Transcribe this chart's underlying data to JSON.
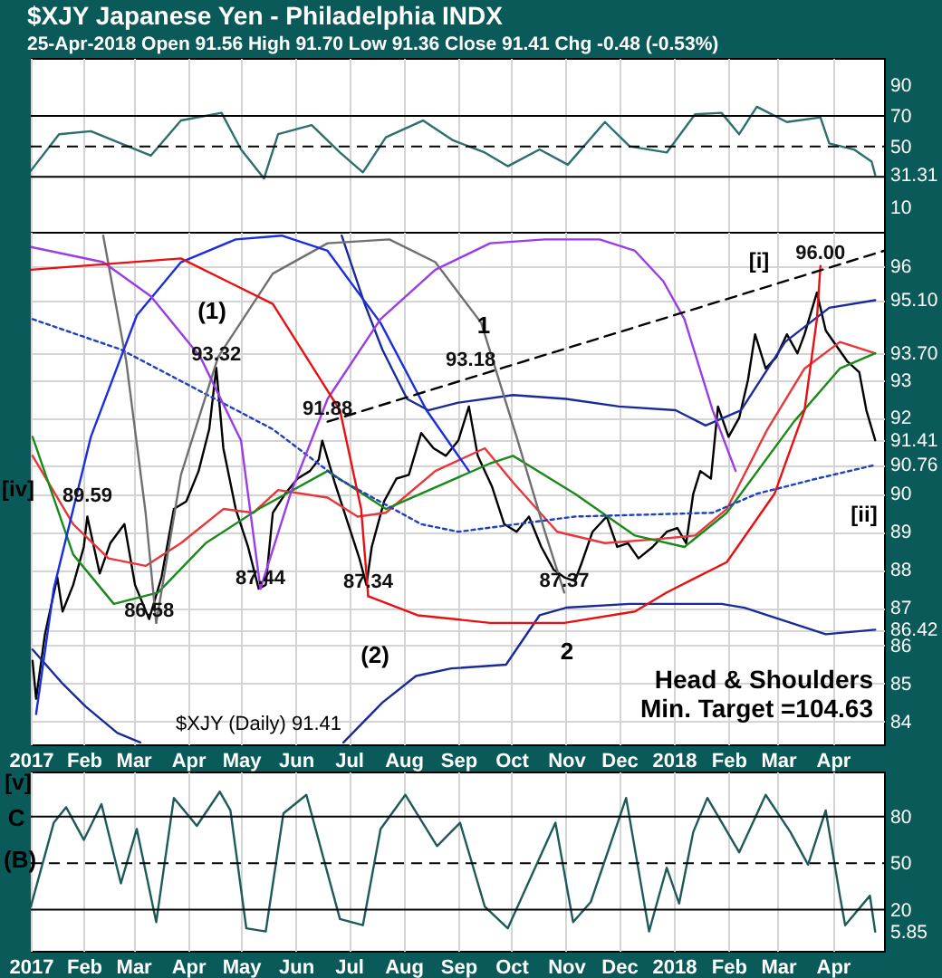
{
  "chart_data": [
    {
      "type": "line",
      "title": "$XJY Japanese Yen - Philadelphia INDX",
      "subtitle": "25-Apr-2018   Open 91.56  High 91.70  Low 91.36  Close 91.41  Chg -0.48 (-0.53%)",
      "xlim": [
        "2017-01-02",
        "2018-04-30"
      ],
      "xticks": [
        {
          "value": "2017-01-02",
          "label": null
        },
        {
          "value": "2017-02-01",
          "label": null
        },
        {
          "value": "2017-03-01",
          "label": null
        },
        {
          "value": "2017-04-01",
          "label": null
        },
        {
          "value": "2017-05-01",
          "label": null
        },
        {
          "value": "2017-06-01",
          "label": null
        },
        {
          "value": "2017-07-01",
          "label": null
        },
        {
          "value": "2017-08-01",
          "label": null
        },
        {
          "value": "2017-09-01",
          "label": null
        },
        {
          "value": "2017-10-01",
          "label": null
        },
        {
          "value": "2017-11-01",
          "label": null
        },
        {
          "value": "2017-12-01",
          "label": null
        },
        {
          "value": "2018-01-01",
          "label": null
        },
        {
          "value": "2018-02-01",
          "label": null
        },
        {
          "value": "2018-03-01",
          "label": null
        },
        {
          "value": "2018-04-01",
          "label": null
        }
      ],
      "ylim": [
        -6,
        108
      ],
      "yticks": [
        10,
        {
          "value": 31.31,
          "label": "31.31"
        },
        50,
        70,
        90
      ],
      "grid": "x",
      "tick_labels": "y",
      "ref_lines": [
        {
          "axis": "y",
          "value": 70
        },
        {
          "axis": "y",
          "value": 50,
          "line_style": "dashed"
        },
        {
          "axis": "y",
          "value": 30
        }
      ],
      "series": [
        {
          "color": "#2d6e6e",
          "x": [
            "2017-01-02",
            "2017-01-18",
            "2017-02-05",
            "2017-02-22",
            "2017-03-11",
            "2017-03-28",
            "2017-04-20",
            "2017-05-01",
            "2017-05-14",
            "2017-05-22",
            "2017-06-10",
            "2017-06-26",
            "2017-07-09",
            "2017-07-22",
            "2017-08-12",
            "2017-08-29",
            "2017-09-16",
            "2017-09-29",
            "2017-10-17",
            "2017-11-02",
            "2017-11-23",
            "2017-12-07",
            "2017-12-28",
            "2018-01-13",
            "2018-01-28",
            "2018-02-07",
            "2018-02-17",
            "2018-03-06",
            "2018-03-25",
            "2018-03-30",
            "2018-04-13",
            "2018-04-23",
            "2018-04-25"
          ],
          "values": [
            34,
            58,
            60,
            52,
            44,
            67,
            72,
            48,
            29,
            58,
            64,
            46,
            33,
            56,
            67,
            54,
            46,
            37,
            48,
            38,
            66,
            50,
            46,
            71,
            72,
            58,
            76,
            66,
            69,
            52,
            48,
            40,
            31.31
          ]
        }
      ]
    },
    {
      "type": "line",
      "xlim": [
        "2017-01-02",
        "2018-04-30"
      ],
      "xticks": [
        {
          "value": "2017-01-02",
          "label": "2017"
        },
        {
          "value": "2017-02-01",
          "label": "Feb"
        },
        {
          "value": "2017-03-01",
          "label": "Mar"
        },
        {
          "value": "2017-04-01",
          "label": "Apr"
        },
        {
          "value": "2017-05-01",
          "label": "May"
        },
        {
          "value": "2017-06-01",
          "label": "Jun"
        },
        {
          "value": "2017-07-01",
          "label": "Jul"
        },
        {
          "value": "2017-08-01",
          "label": "Aug"
        },
        {
          "value": "2017-09-01",
          "label": "Sep"
        },
        {
          "value": "2017-10-01",
          "label": "Oct"
        },
        {
          "value": "2017-11-01",
          "label": "Nov"
        },
        {
          "value": "2017-12-01",
          "label": "Dec"
        },
        {
          "value": "2018-01-01",
          "label": "2018"
        },
        {
          "value": "2018-02-01",
          "label": "Feb"
        },
        {
          "value": "2018-03-01",
          "label": "Mar"
        },
        {
          "value": "2018-04-01",
          "label": "Apr"
        }
      ],
      "ylim": [
        83.4,
        96.9
      ],
      "yticks": [
        84,
        85,
        86,
        {
          "value": 86.42,
          "label": "86.42"
        },
        87,
        88,
        89,
        90,
        {
          "value": 90.76,
          "label": "90.76"
        },
        {
          "value": 91.41,
          "label": "91.41"
        },
        92,
        93,
        {
          "value": 93.7,
          "label": "93.70"
        },
        {
          "value": 95.1,
          "label": "95.10"
        },
        96
      ],
      "grid": true,
      "series": [
        {
          "color": "#000000",
          "x": [
            "2017-01-03",
            "2017-01-05",
            "2017-01-10",
            "2017-01-17",
            "2017-01-20",
            "2017-01-26",
            "2017-02-01",
            "2017-02-03",
            "2017-02-10",
            "2017-02-16",
            "2017-02-24",
            "2017-03-02",
            "2017-03-10",
            "2017-03-17",
            "2017-03-24",
            "2017-03-31",
            "2017-04-07",
            "2017-04-13",
            "2017-04-17",
            "2017-04-21",
            "2017-04-28",
            "2017-05-05",
            "2017-05-11",
            "2017-05-15",
            "2017-05-19",
            "2017-05-26",
            "2017-06-02",
            "2017-06-09",
            "2017-06-14",
            "2017-06-16",
            "2017-06-23",
            "2017-06-30",
            "2017-07-07",
            "2017-07-11",
            "2017-07-14",
            "2017-07-21",
            "2017-07-28",
            "2017-08-04",
            "2017-08-11",
            "2017-08-18",
            "2017-08-25",
            "2017-09-01",
            "2017-09-07",
            "2017-09-12",
            "2017-09-20",
            "2017-09-27",
            "2017-10-04",
            "2017-10-11",
            "2017-10-18",
            "2017-10-25",
            "2017-10-31",
            "2017-11-06",
            "2017-11-10",
            "2017-11-16",
            "2017-11-24",
            "2017-11-30",
            "2017-12-06",
            "2017-12-12",
            "2017-12-20",
            "2017-12-28",
            "2018-01-03",
            "2018-01-08",
            "2018-01-12",
            "2018-01-16",
            "2018-01-22",
            "2018-01-26",
            "2018-02-01",
            "2018-02-07",
            "2018-02-12",
            "2018-02-16",
            "2018-02-22",
            "2018-02-28",
            "2018-03-06",
            "2018-03-12",
            "2018-03-16",
            "2018-03-23",
            "2018-03-28",
            "2018-04-03",
            "2018-04-09",
            "2018-04-16",
            "2018-04-20",
            "2018-04-25"
          ],
          "values": [
            85.6,
            84.6,
            86.3,
            87.8,
            86.9,
            87.6,
            88.6,
            89.4,
            87.9,
            88.7,
            89.2,
            87.6,
            86.7,
            87.8,
            89.6,
            89.8,
            90.6,
            91.7,
            93.32,
            91.2,
            89.6,
            88.6,
            87.5,
            87.6,
            89.5,
            90.0,
            90.4,
            90.6,
            90.9,
            91.4,
            90.3,
            89.3,
            88.3,
            87.6,
            88.6,
            89.8,
            90.4,
            90.5,
            91.6,
            91.2,
            91.0,
            91.4,
            92.3,
            91.0,
            90.2,
            89.2,
            89.0,
            89.4,
            88.6,
            88.0,
            87.8,
            87.7,
            88.2,
            89.0,
            89.4,
            88.6,
            88.7,
            88.3,
            88.6,
            89.0,
            89.1,
            88.7,
            90.0,
            90.6,
            90.4,
            92.3,
            91.5,
            92.0,
            93.0,
            94.2,
            93.3,
            93.6,
            94.2,
            93.7,
            94.2,
            95.3,
            94.3,
            93.9,
            93.5,
            93.2,
            92.2,
            91.41
          ]
        },
        {
          "color": "#e8363b",
          "x": [
            "2017-01-03",
            "2017-01-26",
            "2017-02-15",
            "2017-03-08",
            "2017-03-28",
            "2017-04-21",
            "2017-05-08",
            "2017-05-22",
            "2017-06-19",
            "2017-07-06",
            "2017-07-22",
            "2017-08-19",
            "2017-09-16",
            "2017-10-02",
            "2017-10-27",
            "2017-11-23",
            "2017-12-21",
            "2018-01-13",
            "2018-01-31",
            "2018-02-23",
            "2018-03-16",
            "2018-04-05",
            "2018-04-25"
          ],
          "values": [
            91.0,
            89.2,
            88.3,
            88.1,
            88.7,
            89.6,
            89.5,
            90.1,
            89.9,
            89.4,
            89.5,
            90.6,
            91.2,
            90.3,
            89.0,
            88.7,
            88.8,
            88.9,
            89.6,
            91.7,
            93.3,
            94.0,
            93.7
          ]
        },
        {
          "color": "#1a8a1a",
          "x": [
            "2017-01-03",
            "2017-01-26",
            "2017-02-18",
            "2017-03-15",
            "2017-04-11",
            "2017-05-11",
            "2017-06-19",
            "2017-07-22",
            "2017-09-19",
            "2017-10-02",
            "2017-11-06",
            "2017-12-10",
            "2018-01-07",
            "2018-01-31",
            "2018-03-10",
            "2018-04-05",
            "2018-04-25"
          ],
          "values": [
            91.5,
            88.4,
            87.1,
            87.4,
            88.7,
            89.6,
            90.6,
            89.6,
            90.8,
            91.0,
            90.0,
            88.9,
            88.6,
            89.5,
            91.9,
            93.3,
            93.7
          ]
        },
        {
          "color": "#1a2a9a",
          "x": [
            "2017-06-27",
            "2017-07-10",
            "2017-07-20",
            "2017-08-03",
            "2017-08-15",
            "2017-09-01",
            "2017-10-02",
            "2017-11-01",
            "2017-12-01",
            "2018-01-02",
            "2018-01-19",
            "2018-02-08",
            "2018-03-05",
            "2018-03-30",
            "2018-04-25"
          ],
          "values": [
            96.8,
            95.0,
            93.8,
            92.5,
            92.2,
            92.4,
            92.6,
            92.5,
            92.3,
            92.2,
            91.8,
            92.2,
            94.0,
            94.9,
            95.1
          ]
        },
        {
          "color": "#1a2a9a",
          "x": [
            "2017-01-03",
            "2017-01-20",
            "2017-02-02",
            "2017-02-20",
            "2017-03-05"
          ],
          "values": [
            85.9,
            85.0,
            84.4,
            83.7,
            83.45
          ]
        },
        {
          "color": "#1a2a9a",
          "x": [
            "2017-06-28",
            "2017-07-20",
            "2017-08-08",
            "2017-08-28",
            "2017-09-28",
            "2017-10-17",
            "2017-11-01",
            "2017-12-07",
            "2018-01-28",
            "2018-02-10",
            "2018-03-28",
            "2018-04-25"
          ],
          "values": [
            83.45,
            84.5,
            85.2,
            85.4,
            85.5,
            86.8,
            87.0,
            87.1,
            87.1,
            87.0,
            86.3,
            86.42
          ]
        },
        {
          "color": "#2040c0",
          "line_style": "dotted",
          "x": [
            "2017-01-03",
            "2017-02-22",
            "2017-05-19",
            "2017-06-25",
            "2017-08-11",
            "2017-09-01",
            "2017-11-06",
            "2018-01-23",
            "2018-02-17",
            "2018-03-23",
            "2018-04-25"
          ],
          "values": [
            94.6,
            93.8,
            91.7,
            90.4,
            89.2,
            89.0,
            89.4,
            89.5,
            90.0,
            90.4,
            90.76
          ]
        },
        {
          "color": "#707070",
          "x": [
            "2017-02-12",
            "2017-02-25",
            "2017-03-08",
            "2017-03-14"
          ],
          "values": [
            96.8,
            93.5,
            89.5,
            86.6
          ]
        },
        {
          "color": "#707070",
          "x": [
            "2017-03-14",
            "2017-03-28",
            "2017-04-18",
            "2017-05-19",
            "2017-06-19",
            "2017-07-24",
            "2017-08-19",
            "2017-09-14",
            "2017-10-04",
            "2017-10-20",
            "2017-10-31"
          ],
          "values": [
            86.6,
            90.5,
            93.6,
            95.8,
            96.6,
            96.7,
            96.1,
            94.5,
            91.5,
            89.0,
            87.4
          ]
        },
        {
          "color": "#1a2ee0",
          "x": [
            "2017-01-05",
            "2017-01-15",
            "2017-02-05",
            "2017-03-03",
            "2017-03-28",
            "2017-04-28",
            "2017-05-24",
            "2017-06-19",
            "2017-07-19",
            "2017-08-14",
            "2017-09-07"
          ],
          "values": [
            84.2,
            87.5,
            91.5,
            94.7,
            96.1,
            96.7,
            96.8,
            96.4,
            94.5,
            92.2,
            90.6
          ]
        },
        {
          "color": "#9a3de8",
          "x": [
            "2017-01-02",
            "2017-02-12",
            "2017-03-11",
            "2017-04-08",
            "2017-05-01",
            "2017-05-12"
          ],
          "values": [
            96.5,
            96.1,
            95.2,
            93.6,
            91.4,
            87.5
          ]
        },
        {
          "color": "#9a3de8",
          "x": [
            "2017-05-12",
            "2017-05-29",
            "2017-06-19",
            "2017-07-19",
            "2017-08-19",
            "2017-09-19",
            "2017-10-20",
            "2017-11-20",
            "2017-12-10",
            "2017-12-26",
            "2018-01-07",
            "2018-01-23",
            "2018-02-05"
          ],
          "values": [
            87.5,
            90.0,
            92.5,
            94.6,
            95.9,
            96.6,
            96.7,
            96.7,
            96.4,
            95.6,
            94.6,
            92.2,
            90.6
          ]
        },
        {
          "color": "#e81010",
          "x": [
            "2017-01-02",
            "2017-03-28",
            "2017-05-19",
            "2017-06-26",
            "2017-07-08",
            "2017-07-12"
          ],
          "values": [
            95.9,
            96.2,
            95.0,
            92.2,
            89.6,
            87.3
          ]
        },
        {
          "color": "#e81010",
          "x": [
            "2017-07-12",
            "2017-08-09",
            "2017-09-19",
            "2017-10-31",
            "2017-12-10",
            "2017-12-28",
            "2018-01-31",
            "2018-02-27",
            "2018-03-16",
            "2018-03-23",
            "2018-03-25"
          ],
          "values": [
            87.3,
            86.8,
            86.6,
            86.6,
            86.9,
            87.4,
            88.2,
            90.0,
            92.2,
            94.6,
            96.0
          ]
        },
        {
          "color": "#000000",
          "line_style": "dashed",
          "x": [
            "2017-06-19",
            "2018-04-30"
          ],
          "values": [
            91.9,
            96.4
          ]
        }
      ],
      "annotations": [
        "$XJY (Daily) 91.41",
        "Head & Shoulders\nMin. Target =104.63",
        {
          "text": "89.59",
          "x": "2017-02-03",
          "y": 89.59
        },
        {
          "text": "86.58",
          "x": "2017-03-10",
          "y": 86.58
        },
        {
          "text": "93.32",
          "x": "2017-04-17",
          "y": 93.32
        },
        {
          "text": "87.44",
          "x": "2017-05-12",
          "y": 87.44
        },
        {
          "text": "91.88",
          "x": "2017-06-19",
          "y": 91.88
        },
        {
          "text": "87.34",
          "x": "2017-07-12",
          "y": 87.34
        },
        {
          "text": "93.18",
          "x": "2017-09-08",
          "y": 93.18
        },
        {
          "text": "87.37",
          "x": "2017-10-31",
          "y": 87.37
        },
        {
          "text": "96.00",
          "x": "2018-03-25",
          "y": 96.0
        },
        "(1)",
        "(2)",
        "1",
        "2",
        "[i]",
        "[ii]",
        "[iv]"
      ]
    },
    {
      "type": "line",
      "xlim": [
        "2017-01-02",
        "2018-04-30"
      ],
      "xticks": [
        {
          "value": "2017-01-02",
          "label": "2017"
        },
        {
          "value": "2017-02-01",
          "label": "Feb"
        },
        {
          "value": "2017-03-01",
          "label": "Mar"
        },
        {
          "value": "2017-04-01",
          "label": "Apr"
        },
        {
          "value": "2017-05-01",
          "label": "May"
        },
        {
          "value": "2017-06-01",
          "label": "Jun"
        },
        {
          "value": "2017-07-01",
          "label": "Jul"
        },
        {
          "value": "2017-08-01",
          "label": "Aug"
        },
        {
          "value": "2017-09-01",
          "label": "Sep"
        },
        {
          "value": "2017-10-01",
          "label": "Oct"
        },
        {
          "value": "2017-11-01",
          "label": "Nov"
        },
        {
          "value": "2017-12-01",
          "label": "Dec"
        },
        {
          "value": "2018-01-01",
          "label": "2018"
        },
        {
          "value": "2018-02-01",
          "label": "Feb"
        },
        {
          "value": "2018-03-01",
          "label": "Mar"
        },
        {
          "value": "2018-04-01",
          "label": "Apr"
        }
      ],
      "ylim": [
        -6.5,
        109
      ],
      "yticks": [
        {
          "value": 5.85,
          "label": "5.85"
        },
        20,
        50,
        80
      ],
      "grid": "x",
      "ref_lines": [
        {
          "axis": "y",
          "value": 80
        },
        {
          "axis": "y",
          "value": 50,
          "line_style": "dashed"
        },
        {
          "axis": "y",
          "value": 20
        }
      ],
      "series": [
        {
          "color": "#1f5a5a",
          "x": [
            "2017-01-02",
            "2017-01-15",
            "2017-01-22",
            "2017-02-01",
            "2017-02-11",
            "2017-02-22",
            "2017-03-03",
            "2017-03-14",
            "2017-03-24",
            "2017-04-06",
            "2017-04-19",
            "2017-04-25",
            "2017-05-04",
            "2017-05-15",
            "2017-05-25",
            "2017-06-07",
            "2017-06-26",
            "2017-07-09",
            "2017-07-19",
            "2017-08-02",
            "2017-08-20",
            "2017-09-02",
            "2017-09-16",
            "2017-09-29",
            "2017-10-26",
            "2017-11-05",
            "2017-11-15",
            "2017-12-05",
            "2017-12-18",
            "2017-12-28",
            "2018-01-04",
            "2018-01-12",
            "2018-01-20",
            "2018-02-07",
            "2018-02-22",
            "2018-03-08",
            "2018-03-18",
            "2018-03-28",
            "2018-04-05",
            "2018-04-08",
            "2018-04-22",
            "2018-04-25"
          ],
          "values": [
            22,
            76,
            86,
            65,
            88,
            37,
            72,
            12,
            92,
            74,
            96,
            84,
            8,
            6,
            82,
            94,
            14,
            10,
            72,
            94,
            61,
            76,
            22,
            8,
            76,
            12,
            25,
            92,
            6,
            47,
            24,
            70,
            92,
            57,
            94,
            70,
            49,
            84,
            29,
            10,
            29,
            5.85
          ]
        }
      ],
      "annotations": [
        "[v]",
        "C",
        "(B)"
      ]
    }
  ]
}
